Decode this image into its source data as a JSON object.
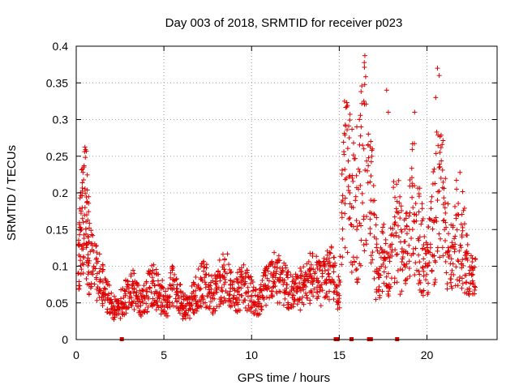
{
  "chart_data": {
    "type": "scatter",
    "title": "Day 003 of 2018, SRMTID for receiver p023",
    "xlabel": "GPS time / hours",
    "ylabel": "SRMTID / TECUs",
    "xlim": [
      0,
      24
    ],
    "ylim": [
      0,
      0.4
    ],
    "xticks": [
      "0",
      "5",
      "10",
      "15",
      "20"
    ],
    "yticks": [
      "0",
      "0.05",
      "0.1",
      "0.15",
      "0.2",
      "0.25",
      "0.3",
      "0.35",
      "0.4"
    ],
    "grid": true,
    "marker": "plus",
    "color": "#e00000",
    "series": [
      {
        "name": "SRMTID",
        "x": [
          0.1,
          0.2,
          0.3,
          0.4,
          0.5,
          0.6,
          0.7,
          0.8,
          1.0,
          1.2,
          1.4,
          1.6,
          1.8,
          2.0,
          2.2,
          2.4,
          2.6,
          2.8,
          3.0,
          3.2,
          3.4,
          3.6,
          3.8,
          4.0,
          4.2,
          4.4,
          4.6,
          4.8,
          5.0,
          5.2,
          5.4,
          5.6,
          5.8,
          6.0,
          6.2,
          6.4,
          6.6,
          6.8,
          7.0,
          7.2,
          7.4,
          7.6,
          7.8,
          8.0,
          8.2,
          8.4,
          8.6,
          8.8,
          9.0,
          9.2,
          9.4,
          9.6,
          9.8,
          10.0,
          10.2,
          10.4,
          10.6,
          10.8,
          11.0,
          11.2,
          11.4,
          11.6,
          11.8,
          12.0,
          12.2,
          12.4,
          12.6,
          12.8,
          13.0,
          13.2,
          13.4,
          13.6,
          13.8,
          14.0,
          14.2,
          14.4,
          14.6,
          14.8,
          15.0,
          15.2,
          15.4,
          15.6,
          15.8,
          16.0,
          16.2,
          16.4,
          16.6,
          16.8,
          17.0,
          17.2,
          17.4,
          17.6,
          17.8,
          18.0,
          18.2,
          18.4,
          18.6,
          18.8,
          19.0,
          19.2,
          19.4,
          19.6,
          19.8,
          20.0,
          20.2,
          20.4,
          20.6,
          20.8,
          21.0,
          21.2,
          21.4,
          21.6,
          21.8,
          22.0,
          22.2,
          22.4,
          22.6
        ],
        "y": [
          0.09,
          0.13,
          0.15,
          0.16,
          0.18,
          0.17,
          0.14,
          0.12,
          0.1,
          0.09,
          0.08,
          0.07,
          0.06,
          0.05,
          0.04,
          0.045,
          0.05,
          0.06,
          0.065,
          0.07,
          0.06,
          0.055,
          0.05,
          0.06,
          0.07,
          0.08,
          0.065,
          0.06,
          0.055,
          0.05,
          0.07,
          0.08,
          0.06,
          0.05,
          0.045,
          0.04,
          0.055,
          0.06,
          0.07,
          0.08,
          0.075,
          0.065,
          0.06,
          0.07,
          0.08,
          0.085,
          0.09,
          0.07,
          0.06,
          0.065,
          0.07,
          0.075,
          0.065,
          0.06,
          0.05,
          0.055,
          0.06,
          0.07,
          0.08,
          0.085,
          0.09,
          0.08,
          0.075,
          0.07,
          0.065,
          0.06,
          0.065,
          0.07,
          0.075,
          0.08,
          0.085,
          0.09,
          0.08,
          0.075,
          0.08,
          0.09,
          0.1,
          0.07,
          0.06,
          0.19,
          0.22,
          0.2,
          0.18,
          0.15,
          0.21,
          0.26,
          0.23,
          0.19,
          0.14,
          0.09,
          0.1,
          0.12,
          0.09,
          0.13,
          0.16,
          0.14,
          0.11,
          0.12,
          0.15,
          0.18,
          0.17,
          0.14,
          0.11,
          0.1,
          0.13,
          0.16,
          0.19,
          0.22,
          0.15,
          0.12,
          0.11,
          0.13,
          0.17,
          0.14,
          0.11,
          0.09,
          0.08
        ]
      }
    ],
    "peak_points": [
      {
        "x": 15.3,
        "y": 0.325
      },
      {
        "x": 16.0,
        "y": 0.29
      },
      {
        "x": 16.4,
        "y": 0.325
      },
      {
        "x": 17.7,
        "y": 0.34
      },
      {
        "x": 17.8,
        "y": 0.31
      },
      {
        "x": 20.6,
        "y": 0.37
      },
      {
        "x": 20.7,
        "y": 0.36
      },
      {
        "x": 20.5,
        "y": 0.33
      },
      {
        "x": 19.3,
        "y": 0.31
      }
    ],
    "rug_marks_x": [
      2.6,
      14.8,
      14.9,
      15.7,
      16.7,
      16.8,
      18.3
    ]
  }
}
